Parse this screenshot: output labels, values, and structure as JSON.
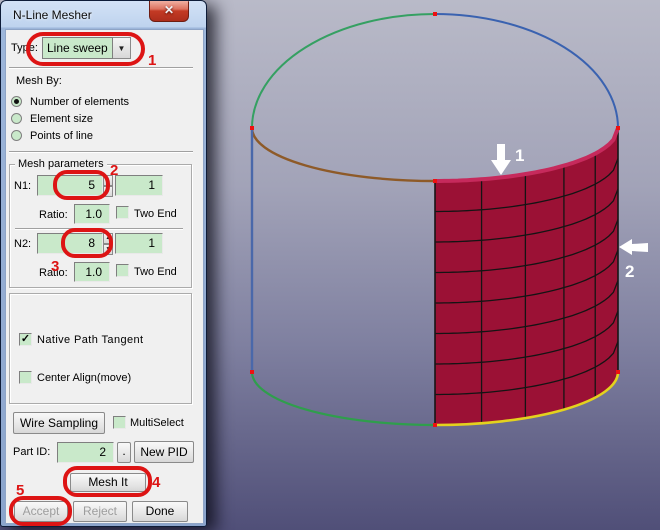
{
  "window": {
    "title": "N-Line Mesher"
  },
  "icons": {
    "close": "✕",
    "dropdown_arrow": "▼",
    "spinner_up": "▲",
    "spinner_down": "▼",
    "check": "✓"
  },
  "type_row": {
    "label": "Type:",
    "value": "Line sweep"
  },
  "mesh_by": {
    "label": "Mesh By:",
    "options": [
      {
        "label": "Number of elements",
        "selected": true
      },
      {
        "label": "Element size",
        "selected": false
      },
      {
        "label": "Points of line",
        "selected": false
      }
    ]
  },
  "mesh_parameters": {
    "title": "Mesh parameters",
    "n1": {
      "label": "N1:",
      "value": "5",
      "bias": "1",
      "ratio_label": "Ratio:",
      "ratio": "1.0",
      "two_end_label": "Two End",
      "two_end_checked": false
    },
    "n2": {
      "label": "N2:",
      "value": "8",
      "bias": "1",
      "ratio_label": "Ratio:",
      "ratio": "1.0",
      "two_end_label": "Two End",
      "two_end_checked": false
    }
  },
  "options": {
    "native_path_tangent": {
      "label": "Native Path Tangent",
      "checked": true
    },
    "center_align": {
      "label": "Center Align(move)",
      "checked": false
    }
  },
  "actions": {
    "wire_sampling": "Wire Sampling",
    "multiselect": {
      "label": "MultiSelect",
      "checked": false
    },
    "part_id_label": "Part ID:",
    "part_id_value": "2",
    "dot_button": ".",
    "new_pid": "New PID",
    "mesh_it": "Mesh It",
    "accept": "Accept",
    "reject": "Reject",
    "done": "Done",
    "accept_enabled": false,
    "reject_enabled": false,
    "done_enabled": true
  },
  "annotations": {
    "color": "#dd1414",
    "steps": [
      "1",
      "2",
      "3",
      "4",
      "5"
    ]
  },
  "viewport": {
    "bg_top": "#b9bac8",
    "bg_bottom": "#504f78",
    "arrow_labels": {
      "arrow1": "1",
      "arrow2": "2"
    },
    "mesh": {
      "n1": 5,
      "n2": 8,
      "fill": "#9b1135",
      "grid": "#141414",
      "top_edge": "#c62a5c",
      "bottom_edge": "#e3d21e"
    },
    "curves": {
      "back_left": "#35a062",
      "back_right": "#3a62b0",
      "front_left": "#8e5a28",
      "left_edge": "#4a68aa",
      "bottom_left": "#2f9e4c"
    },
    "point_color": "#ee1111"
  }
}
